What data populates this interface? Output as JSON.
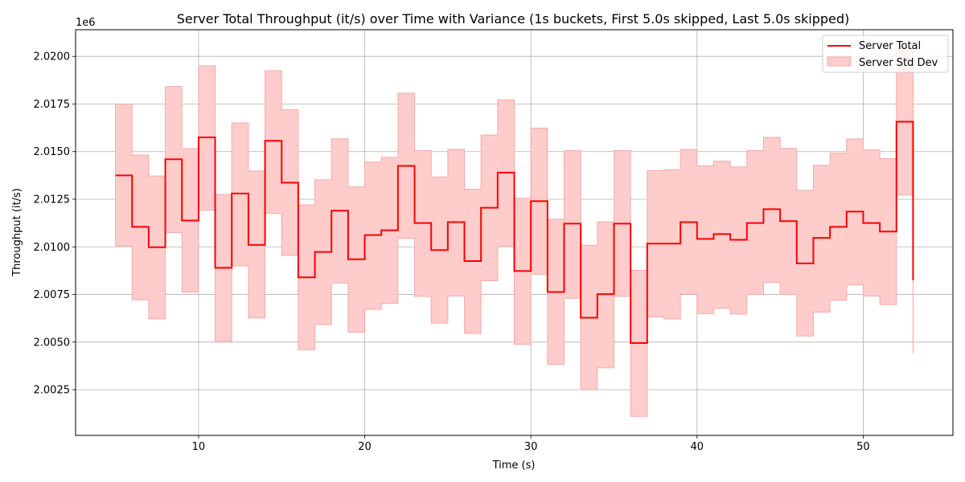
{
  "chart_data": {
    "type": "line",
    "title": "Server Total Throughput (it/s) over Time with Variance (1s buckets, First 5.0s skipped, Last 5.0s skipped)",
    "xlabel": "Time (s)",
    "ylabel": "Throughput (it/s)",
    "y_offset_label": "1e6",
    "y_scale_factor": 1000000,
    "xlim": [
      2.6,
      55.4
    ],
    "ylim": [
      2.0001,
      2.0214
    ],
    "x_ticks": [
      10,
      20,
      30,
      40,
      50
    ],
    "y_ticks": [
      2.0025,
      2.005,
      2.0075,
      2.01,
      2.0125,
      2.015,
      2.0175,
      2.02
    ],
    "y_tick_labels": [
      "2.0025",
      "2.0050",
      "2.0075",
      "2.0100",
      "2.0125",
      "2.0150",
      "2.0175",
      "2.0200"
    ],
    "grid": true,
    "legend_position": "top-right",
    "step": "post",
    "x": [
      5,
      6,
      7,
      8,
      9,
      10,
      11,
      12,
      13,
      14,
      15,
      16,
      17,
      18,
      19,
      20,
      21,
      22,
      23,
      24,
      25,
      26,
      27,
      28,
      29,
      30,
      31,
      32,
      33,
      34,
      35,
      36,
      37,
      38,
      39,
      40,
      41,
      42,
      43,
      44,
      45,
      46,
      47,
      48,
      49,
      50,
      51,
      52,
      53
    ],
    "series": [
      {
        "name": "Server Total",
        "color": "#ff0000",
        "values": [
          2.01375,
          2.01105,
          2.00998,
          2.0146,
          2.01138,
          2.01575,
          2.0089,
          2.0128,
          2.0101,
          2.01557,
          2.01337,
          2.0084,
          2.00973,
          2.0119,
          2.00935,
          2.01062,
          2.01087,
          2.01425,
          2.01125,
          2.00983,
          2.0113,
          2.00925,
          2.01205,
          2.0139,
          2.00873,
          2.0124,
          2.00763,
          2.01122,
          2.00628,
          2.00752,
          2.01122,
          2.00495,
          2.01017,
          2.01017,
          2.0113,
          2.01042,
          2.01067,
          2.01037,
          2.01125,
          2.01198,
          2.01135,
          2.00913,
          2.01047,
          2.01105,
          2.01185,
          2.01125,
          2.0108,
          2.01657,
          2.00825
        ]
      },
      {
        "name": "Server Std Dev",
        "type": "band",
        "color": "#ffcccc",
        "edge_color": "#f4a9a9",
        "lower": [
          2.01005,
          2.00722,
          2.00622,
          2.01075,
          2.00762,
          2.01192,
          2.00502,
          2.009,
          2.00627,
          2.01175,
          2.00955,
          2.0046,
          2.00592,
          2.0081,
          2.00552,
          2.00672,
          2.00703,
          2.01045,
          2.0074,
          2.006,
          2.00742,
          2.00545,
          2.00822,
          2.01002,
          2.00488,
          2.00855,
          2.00382,
          2.0073,
          2.0025,
          2.00365,
          2.0074,
          2.0011,
          2.00632,
          2.00622,
          2.00752,
          2.0065,
          2.00677,
          2.00647,
          2.0075,
          2.00813,
          2.0075,
          2.00532,
          2.00657,
          2.0072,
          2.008,
          2.00742,
          2.00697,
          2.01272,
          2.0044
        ],
        "upper": [
          2.0175,
          2.01482,
          2.01372,
          2.01842,
          2.01515,
          2.0195,
          2.01275,
          2.0165,
          2.01398,
          2.01925,
          2.0172,
          2.0122,
          2.01352,
          2.01567,
          2.01315,
          2.01445,
          2.0147,
          2.01807,
          2.01505,
          2.01367,
          2.01512,
          2.01303,
          2.01587,
          2.01772,
          2.01255,
          2.01623,
          2.01145,
          2.01505,
          2.01008,
          2.01132,
          2.01505,
          2.00877,
          2.014,
          2.01405,
          2.01512,
          2.01425,
          2.0145,
          2.0142,
          2.01505,
          2.01575,
          2.01517,
          2.01297,
          2.01428,
          2.01492,
          2.01567,
          2.0151,
          2.01463,
          2.02045,
          2.0121
        ]
      }
    ]
  }
}
